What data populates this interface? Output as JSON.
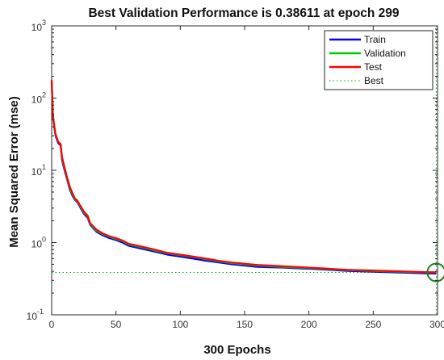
{
  "chart_data": {
    "type": "line",
    "title": "Best Validation Performance is 0.38611 at epoch 299",
    "xlabel": "300 Epochs",
    "ylabel": "Mean Squared Error  (mse)",
    "x_range": [
      0,
      300
    ],
    "y_range": [
      0.1,
      1000
    ],
    "y_scale": "log",
    "x_ticks": [
      0,
      50,
      100,
      150,
      200,
      250,
      300
    ],
    "x_tick_labels": [
      "0",
      "50",
      "100",
      "150",
      "200",
      "250",
      "300"
    ],
    "y_ticks": [
      {
        "value": 1000,
        "base": "10",
        "exp": "3"
      },
      {
        "value": 100,
        "base": "10",
        "exp": "2"
      },
      {
        "value": 10,
        "base": "10",
        "exp": "1"
      },
      {
        "value": 1,
        "base": "10",
        "exp": "0"
      },
      {
        "value": 0.1,
        "base": "10",
        "exp": "-1"
      }
    ],
    "grid": false,
    "legend_position": "top-right",
    "series": [
      {
        "name": "Train",
        "color": "#0000ff",
        "x": [
          0,
          1,
          2,
          3,
          5,
          7,
          8,
          10,
          12,
          14,
          16,
          18,
          20,
          22,
          25,
          28,
          30,
          35,
          40,
          45,
          50,
          55,
          60,
          70,
          80,
          90,
          100,
          110,
          120,
          130,
          140,
          150,
          160,
          170,
          180,
          190,
          200,
          210,
          220,
          230,
          240,
          250,
          260,
          270,
          280,
          290,
          299
        ],
        "y": [
          170,
          55,
          40,
          30,
          24,
          22,
          14,
          10,
          7.5,
          5.5,
          4.5,
          3.9,
          3.6,
          3.1,
          2.5,
          2.2,
          1.75,
          1.4,
          1.25,
          1.15,
          1.08,
          1.0,
          0.9,
          0.82,
          0.75,
          0.68,
          0.64,
          0.6,
          0.56,
          0.53,
          0.5,
          0.48,
          0.46,
          0.455,
          0.45,
          0.44,
          0.435,
          0.425,
          0.415,
          0.405,
          0.4,
          0.395,
          0.39,
          0.385,
          0.38,
          0.375,
          0.372
        ]
      },
      {
        "name": "Validation",
        "color": "#00cc00",
        "x": [
          0,
          1,
          2,
          3,
          5,
          7,
          8,
          10,
          12,
          14,
          16,
          18,
          20,
          22,
          25,
          28,
          30,
          35,
          40,
          45,
          50,
          55,
          60,
          70,
          80,
          90,
          100,
          110,
          120,
          130,
          140,
          150,
          160,
          170,
          180,
          190,
          200,
          210,
          220,
          230,
          240,
          250,
          260,
          270,
          280,
          290,
          299
        ],
        "y": [
          175,
          56,
          41,
          31,
          25,
          23,
          15,
          10.5,
          7.8,
          5.8,
          4.7,
          4.0,
          3.7,
          3.2,
          2.6,
          2.3,
          1.8,
          1.45,
          1.3,
          1.2,
          1.12,
          1.05,
          0.94,
          0.86,
          0.78,
          0.71,
          0.67,
          0.63,
          0.59,
          0.55,
          0.52,
          0.5,
          0.48,
          0.47,
          0.46,
          0.45,
          0.445,
          0.435,
          0.425,
          0.415,
          0.41,
          0.405,
          0.4,
          0.395,
          0.39,
          0.387,
          0.386
        ]
      },
      {
        "name": "Test",
        "color": "#ff0000",
        "x": [
          0,
          1,
          2,
          3,
          5,
          7,
          8,
          10,
          12,
          14,
          16,
          18,
          20,
          22,
          25,
          28,
          30,
          35,
          40,
          45,
          50,
          55,
          60,
          70,
          80,
          90,
          100,
          110,
          120,
          130,
          140,
          150,
          160,
          170,
          180,
          190,
          200,
          210,
          220,
          230,
          240,
          250,
          260,
          270,
          280,
          290,
          299
        ],
        "y": [
          180,
          57,
          42,
          32,
          25,
          23,
          15.5,
          11,
          8,
          6,
          4.9,
          4.1,
          3.8,
          3.3,
          2.7,
          2.35,
          1.85,
          1.5,
          1.33,
          1.22,
          1.15,
          1.07,
          0.96,
          0.88,
          0.8,
          0.72,
          0.68,
          0.64,
          0.6,
          0.56,
          0.53,
          0.51,
          0.49,
          0.48,
          0.47,
          0.46,
          0.45,
          0.44,
          0.43,
          0.42,
          0.415,
          0.41,
          0.405,
          0.4,
          0.395,
          0.39,
          0.388
        ]
      }
    ],
    "best": {
      "name": "Best",
      "color": "#00aa00",
      "epoch": 299,
      "value": 0.38611
    }
  }
}
